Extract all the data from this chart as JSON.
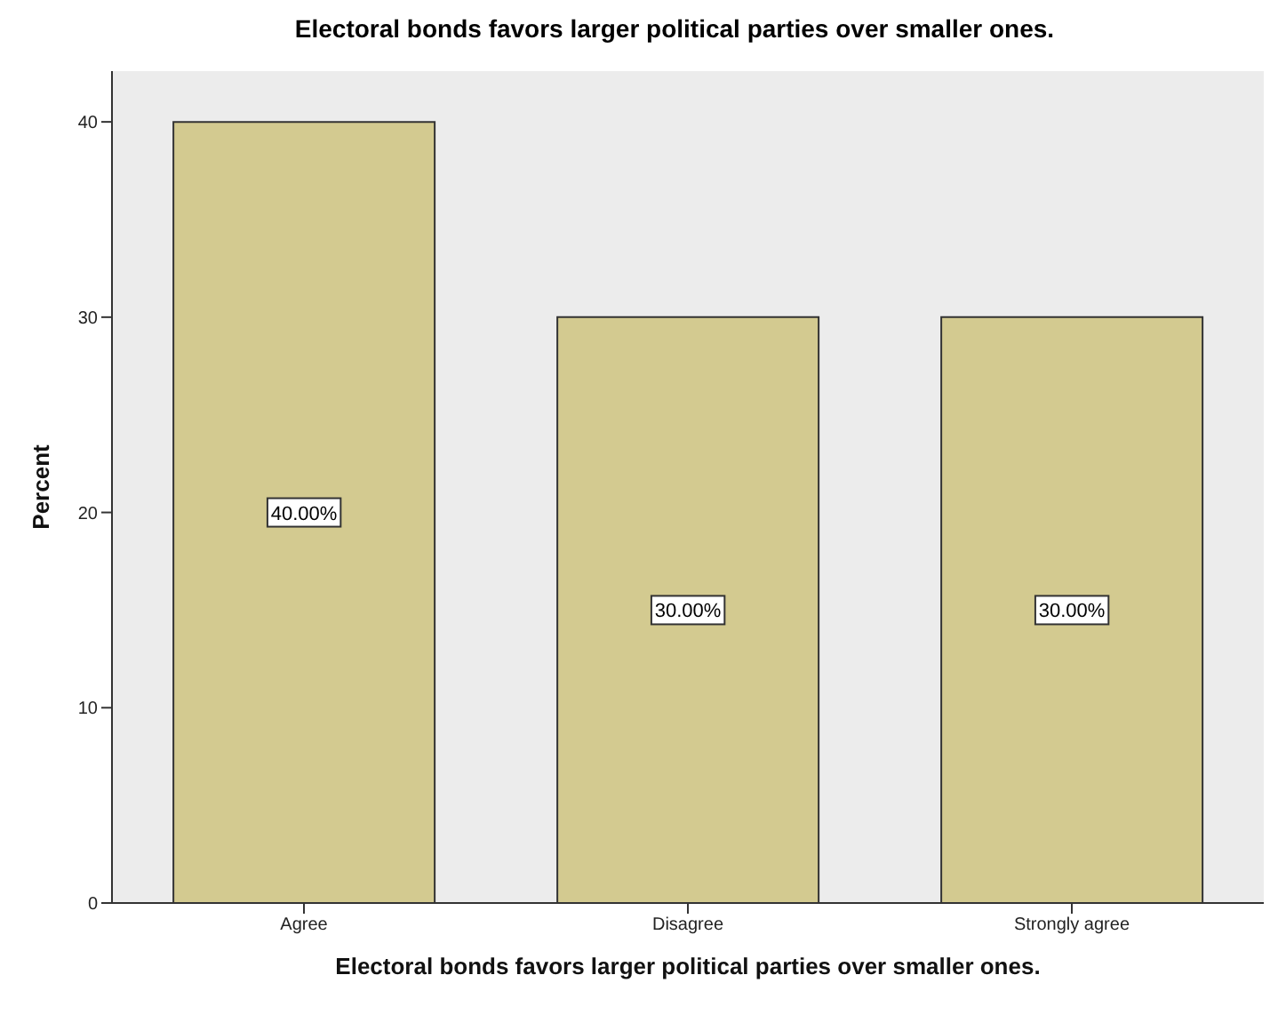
{
  "chart_data": {
    "type": "bar",
    "title": "Electoral bonds favors larger political parties over smaller ones.",
    "xlabel": "Electoral bonds favors larger political parties over smaller ones.",
    "ylabel": "Percent",
    "categories": [
      "Agree",
      "Disagree",
      "Strongly agree"
    ],
    "values": [
      40,
      30,
      30
    ],
    "value_labels": [
      "40.00%",
      "30.00%",
      "30.00%"
    ],
    "color": "#d3ca90",
    "ylim": [
      0,
      42.6
    ],
    "yticks": [
      0,
      10,
      20,
      30,
      40
    ],
    "grid": false
  }
}
